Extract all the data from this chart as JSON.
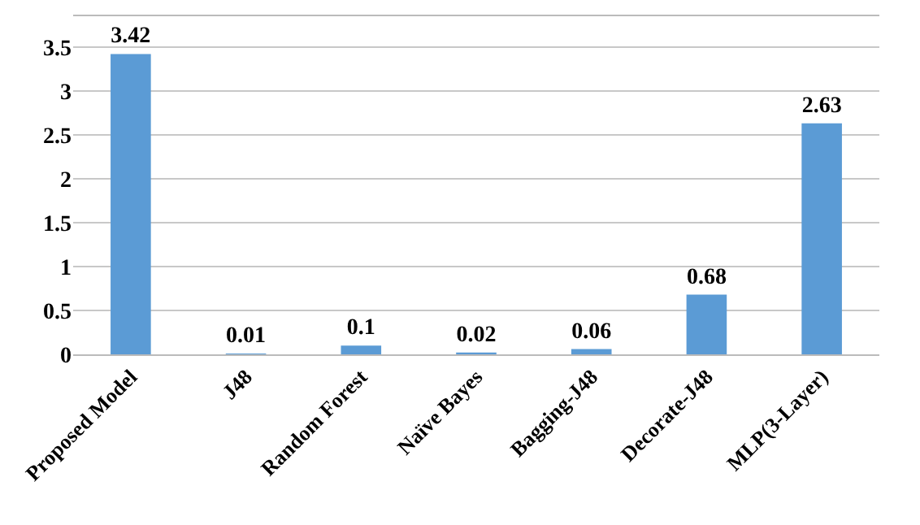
{
  "chart_data": {
    "type": "bar",
    "categories": [
      "Proposed Model",
      "J48",
      "Random Forest",
      "Naïve Bayes",
      "Bagging-J48",
      "Decorate-J48",
      "MLP(3-Layer)"
    ],
    "values": [
      3.42,
      0.01,
      0.1,
      0.02,
      0.06,
      0.68,
      2.63
    ],
    "color": "#5b9bd5",
    "ylim": [
      0,
      3.85
    ],
    "yticks": [
      0,
      0.5,
      1,
      1.5,
      2,
      2.5,
      3,
      3.5
    ],
    "grid": "y",
    "data_labels": true
  }
}
